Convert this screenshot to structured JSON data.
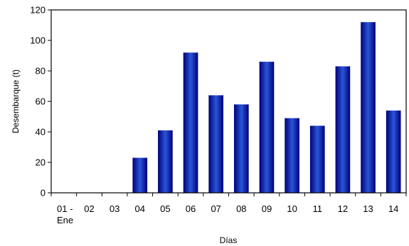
{
  "chart_data": {
    "type": "bar",
    "categories": [
      "01 - Ene",
      "02",
      "03",
      "04",
      "05",
      "06",
      "07",
      "08",
      "09",
      "10",
      "11",
      "12",
      "13",
      "14"
    ],
    "category_lines": [
      [
        "01 -",
        "Ene"
      ],
      [
        "02"
      ],
      [
        "03"
      ],
      [
        "04"
      ],
      [
        "05"
      ],
      [
        "06"
      ],
      [
        "07"
      ],
      [
        "08"
      ],
      [
        "09"
      ],
      [
        "10"
      ],
      [
        "11"
      ],
      [
        "12"
      ],
      [
        "13"
      ],
      [
        "14"
      ]
    ],
    "values": [
      0,
      0,
      0,
      23,
      41,
      92,
      64,
      58,
      86,
      49,
      44,
      83,
      112,
      54
    ],
    "xlabel": "Días",
    "ylabel": "Desembarque (t)",
    "ylim": [
      0,
      120
    ],
    "yticks": [
      0,
      20,
      40,
      60,
      80,
      100,
      120
    ],
    "grid": false,
    "legend": "none",
    "colors": {
      "bar_edge": "#00007a",
      "bar_mid": "#2a55d8",
      "axis": "#000000"
    }
  }
}
